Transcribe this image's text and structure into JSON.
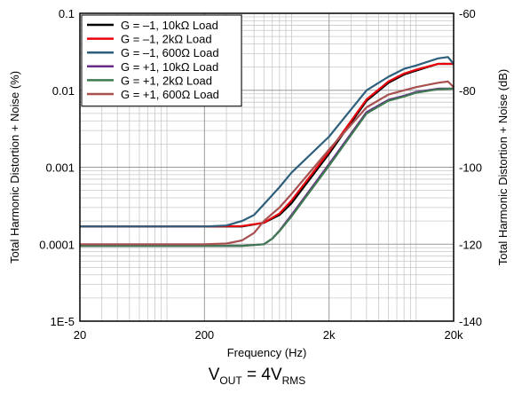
{
  "chart_data": {
    "type": "line",
    "x_scale": "log",
    "y_scale": "log",
    "xlim": [
      20,
      20000
    ],
    "ylim": [
      1e-05,
      0.1
    ],
    "y2lim": [
      -140,
      -60
    ],
    "grid": true,
    "legend_position": "top-left",
    "xlabel": "Frequency (Hz)",
    "ylabel": "Total Harmonic Distortion + Noise (%)",
    "y2label": "Total Harmonic Distortion + Noise (dB)",
    "x_tick_labels": [
      "20",
      "200",
      "2k",
      "20k"
    ],
    "x_tick_values": [
      20,
      200,
      2000,
      20000
    ],
    "y_tick_labels": [
      "1E-5",
      "0.0001",
      "0.001",
      "0.01",
      "0.1"
    ],
    "y_tick_values": [
      1e-05,
      0.0001,
      0.001,
      0.01,
      0.1
    ],
    "y2_tick_labels": [
      "-140",
      "-120",
      "-100",
      "-80",
      "-60"
    ],
    "y2_tick_values": [
      -140,
      -120,
      -100,
      -80,
      -60
    ],
    "series": [
      {
        "name": "G = –1, 10kΩ Load",
        "color": "#000000",
        "x": [
          20,
          50,
          100,
          200,
          400,
          600,
          800,
          1000,
          2000,
          4000,
          6000,
          8000,
          10000,
          15000,
          20000
        ],
        "y": [
          0.00017,
          0.00017,
          0.00017,
          0.00017,
          0.00017,
          0.00019,
          0.00024,
          0.00034,
          0.0015,
          0.0073,
          0.0125,
          0.016,
          0.018,
          0.022,
          0.022
        ]
      },
      {
        "name": "G = –1, 2kΩ Load",
        "color": "#e8000b",
        "x": [
          20,
          50,
          100,
          200,
          400,
          600,
          800,
          1000,
          2000,
          4000,
          6000,
          8000,
          10000,
          15000,
          20000
        ],
        "y": [
          0.00017,
          0.00017,
          0.00017,
          0.00017,
          0.000172,
          0.00019,
          0.00025,
          0.00037,
          0.0016,
          0.0076,
          0.013,
          0.0165,
          0.0185,
          0.022,
          0.022
        ]
      },
      {
        "name": "G = –1, 600Ω Load",
        "color": "#2d5f7c",
        "x": [
          20,
          50,
          100,
          200,
          300,
          400,
          500,
          600,
          800,
          1000,
          2000,
          4000,
          6000,
          8000,
          10000,
          15000,
          18000,
          20000
        ],
        "y": [
          0.00017,
          0.00017,
          0.00017,
          0.00017,
          0.000175,
          0.0002,
          0.00024,
          0.00033,
          0.00055,
          0.00085,
          0.0025,
          0.01,
          0.015,
          0.019,
          0.021,
          0.026,
          0.027,
          0.022
        ]
      },
      {
        "name": "G = +1, 10kΩ Load",
        "color": "#6a2c8a",
        "x": [
          20,
          50,
          100,
          200,
          400,
          600,
          700,
          800,
          1000,
          2000,
          4000,
          6000,
          8000,
          10000,
          15000,
          20000
        ],
        "y": [
          9.5e-05,
          9.5e-05,
          9.5e-05,
          9.5e-05,
          9.5e-05,
          0.0001,
          0.000118,
          0.00015,
          0.00024,
          0.0011,
          0.0052,
          0.0075,
          0.0085,
          0.0095,
          0.0105,
          0.0105
        ]
      },
      {
        "name": "G = +1, 2kΩ Load",
        "color": "#3f7a52",
        "x": [
          20,
          50,
          100,
          200,
          400,
          600,
          700,
          800,
          1000,
          2000,
          4000,
          6000,
          8000,
          10000,
          15000,
          20000
        ],
        "y": [
          9.5e-05,
          9.5e-05,
          9.5e-05,
          9.5e-05,
          9.5e-05,
          0.0001,
          0.000118,
          0.000148,
          0.00023,
          0.00105,
          0.005,
          0.0073,
          0.0083,
          0.0093,
          0.0103,
          0.0105
        ]
      },
      {
        "name": "G = +1, 600Ω Load",
        "color": "#a85050",
        "x": [
          20,
          50,
          100,
          200,
          300,
          400,
          500,
          600,
          800,
          1000,
          2000,
          4000,
          6000,
          8000,
          10000,
          15000,
          18000,
          20000
        ],
        "y": [
          0.0001,
          0.0001,
          0.0001,
          0.0001,
          0.000102,
          0.000112,
          0.00014,
          0.0002,
          0.0003,
          0.00045,
          0.0017,
          0.006,
          0.0088,
          0.01,
          0.011,
          0.0125,
          0.013,
          0.011
        ]
      }
    ]
  },
  "caption": {
    "main": "V",
    "main_sub": "OUT",
    "eq": " = 4V",
    "eq_sub": "RMS"
  }
}
